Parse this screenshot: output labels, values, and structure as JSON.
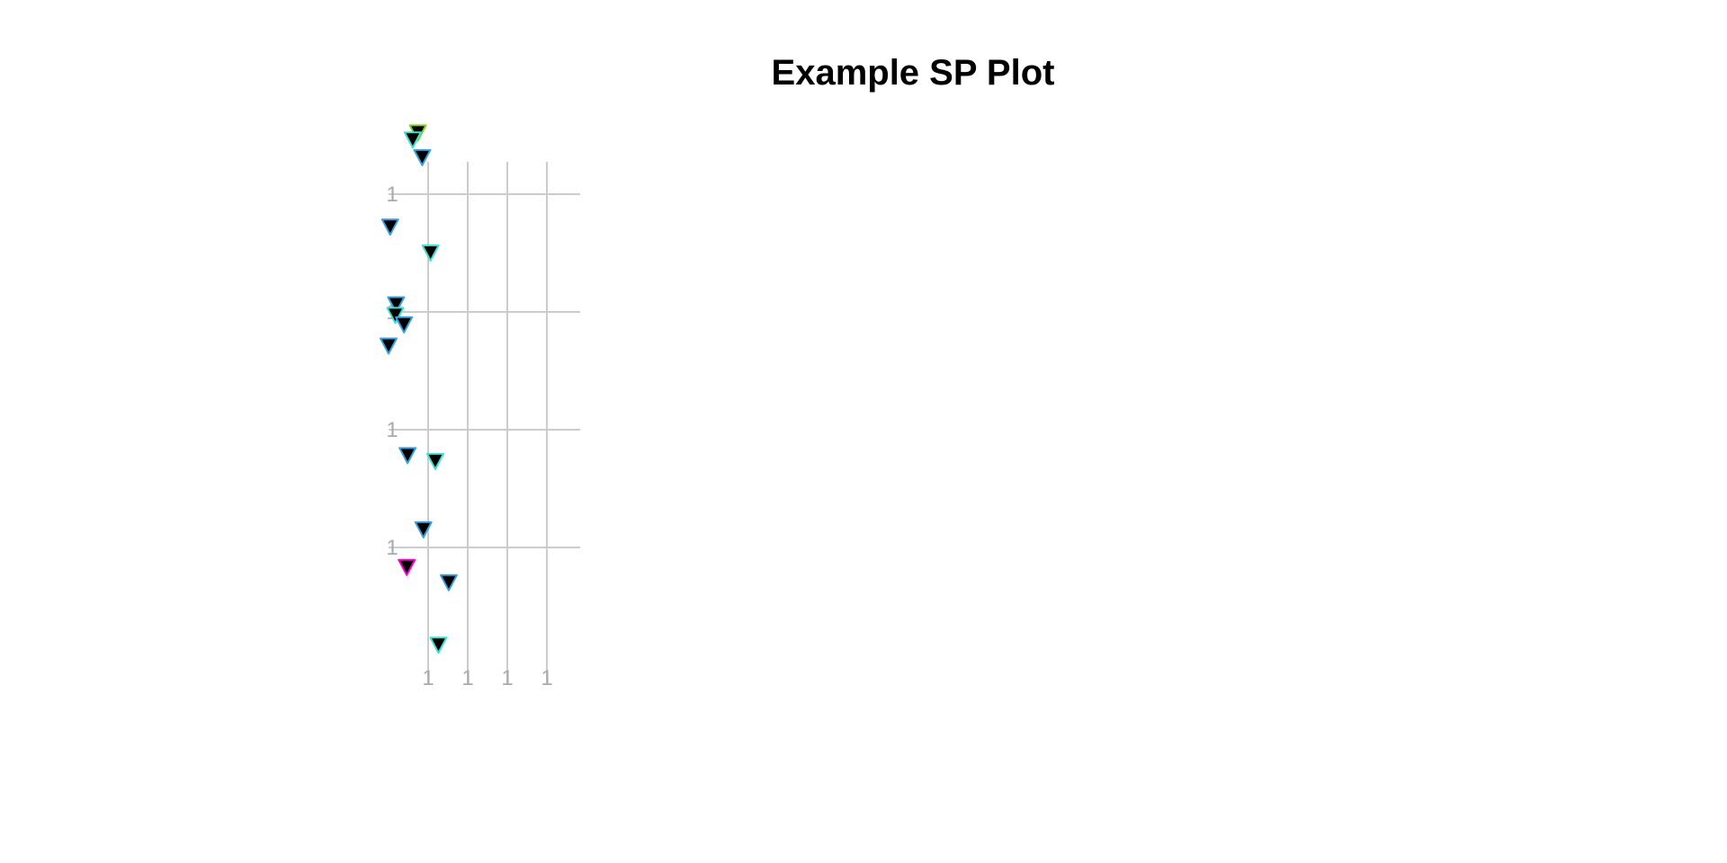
{
  "chart_data": {
    "type": "scatter",
    "title": "Example SP Plot",
    "xlabel": "",
    "ylabel": "",
    "x_ticks": [
      "1",
      "1",
      "1",
      "1"
    ],
    "y_ticks": [
      "1",
      "1",
      "1",
      "1"
    ],
    "grid": true,
    "marker": "triangle-down",
    "colors": {
      "marker_fill": "#000000",
      "grid": "#cccccc",
      "tick": "#aaaaaa"
    },
    "points": [
      {
        "x": 0.74,
        "y": 4.52,
        "stroke": "#7ed321"
      },
      {
        "x": 0.61,
        "y": 4.46,
        "stroke": "#40e0d0"
      },
      {
        "x": 0.85,
        "y": 4.31,
        "stroke": "#3aa0e0"
      },
      {
        "x": 0.04,
        "y": 3.72,
        "stroke": "#3aa0e0"
      },
      {
        "x": 1.06,
        "y": 3.5,
        "stroke": "#40e0d0"
      },
      {
        "x": 0.19,
        "y": 3.06,
        "stroke": "#3aa0e0"
      },
      {
        "x": 0.17,
        "y": 2.97,
        "stroke": "#40e0d0"
      },
      {
        "x": 0.39,
        "y": 2.89,
        "stroke": "#3aa0e0"
      },
      {
        "x": 0.0,
        "y": 2.71,
        "stroke": "#3aa0e0"
      },
      {
        "x": 0.48,
        "y": 1.78,
        "stroke": "#3aa0e0"
      },
      {
        "x": 1.18,
        "y": 1.73,
        "stroke": "#40e0d0"
      },
      {
        "x": 0.88,
        "y": 1.15,
        "stroke": "#3aa0e0"
      },
      {
        "x": 0.46,
        "y": 0.83,
        "stroke": "#ff00cc"
      },
      {
        "x": 1.52,
        "y": 0.7,
        "stroke": "#3aa0e0"
      },
      {
        "x": 1.26,
        "y": 0.17,
        "stroke": "#40e0d0"
      }
    ]
  }
}
